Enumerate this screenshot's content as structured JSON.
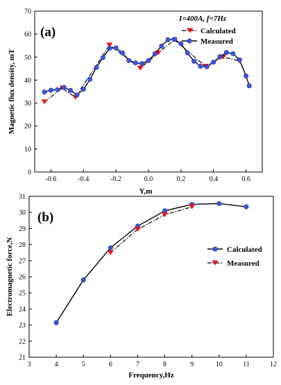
{
  "chart_data": [
    {
      "type": "line",
      "panel_label": "(a)",
      "condition_label": "I=400A, f=7Hz",
      "xlabel": "Y,m",
      "ylabel": "Magnetic flux density, mT",
      "xlim": [
        -0.7,
        0.7
      ],
      "ylim": [
        0,
        70
      ],
      "xticks": [
        -0.6,
        -0.4,
        -0.2,
        0.0,
        0.2,
        0.4,
        0.6
      ],
      "xtick_labels": [
        "-0.6",
        "-0.4",
        "-0.2",
        "0.0",
        "0.2",
        "0.4",
        "0.6"
      ],
      "yticks": [
        0,
        10,
        20,
        30,
        40,
        50,
        60,
        70
      ],
      "ytick_labels": [
        "0",
        "10",
        "20",
        "30",
        "40",
        "50",
        "60",
        "70"
      ],
      "legend_position": "top-right",
      "series": [
        {
          "name": "Calculated",
          "style": "dash-dot",
          "marker": "triangle-down",
          "line_color": "#000000",
          "marker_color": "#e8121b",
          "x": [
            -0.64,
            -0.53,
            -0.45,
            -0.24,
            -0.05,
            0.06,
            0.16,
            0.35,
            0.46,
            0.56
          ],
          "y": [
            30.5,
            36.5,
            32.5,
            55.2,
            45.2,
            51.8,
            57.5,
            46.0,
            50.0,
            48.3
          ]
        },
        {
          "name": "Measured",
          "style": "solid",
          "marker": "circle",
          "line_color": "#000000",
          "marker_color": "#3f56e0",
          "x": [
            -0.64,
            -0.6,
            -0.56,
            -0.52,
            -0.48,
            -0.44,
            -0.4,
            -0.36,
            -0.32,
            -0.28,
            -0.24,
            -0.2,
            -0.16,
            -0.12,
            -0.08,
            -0.04,
            0.0,
            0.04,
            0.08,
            0.12,
            0.16,
            0.2,
            0.24,
            0.28,
            0.32,
            0.36,
            0.4,
            0.44,
            0.48,
            0.52,
            0.56,
            0.6,
            0.62
          ],
          "y": [
            34.8,
            35.6,
            35.8,
            36.8,
            35.5,
            33.5,
            36.0,
            40.3,
            45.5,
            49.8,
            53.8,
            54.0,
            51.8,
            48.5,
            47.5,
            47.2,
            48.5,
            51.5,
            54.8,
            57.5,
            57.7,
            55.8,
            51.8,
            48.2,
            46.0,
            45.8,
            47.8,
            50.2,
            52.0,
            51.5,
            48.8,
            41.8,
            37.5
          ]
        }
      ]
    },
    {
      "type": "line",
      "panel_label": "(b)",
      "xlabel": "Frequency,Hz",
      "ylabel": "Electromagnetic force,N",
      "xlim": [
        3,
        12
      ],
      "ylim": [
        21,
        31
      ],
      "xticks": [
        3,
        4,
        5,
        6,
        7,
        8,
        9,
        10,
        11,
        12
      ],
      "xtick_labels": [
        "3",
        "4",
        "5",
        "6",
        "7",
        "8",
        "9",
        "10",
        "11",
        "12"
      ],
      "yticks": [
        21,
        22,
        23,
        24,
        25,
        26,
        27,
        28,
        29,
        30,
        31
      ],
      "ytick_labels": [
        "21",
        "22",
        "23",
        "24",
        "25",
        "26",
        "27",
        "28",
        "29",
        "30",
        "31"
      ],
      "legend_position": "right",
      "series": [
        {
          "name": "Calculated",
          "style": "solid",
          "marker": "circle",
          "line_color": "#000000",
          "marker_color": "#3f56e0",
          "x": [
            4,
            5,
            6,
            7,
            8,
            9,
            10,
            11
          ],
          "y": [
            23.15,
            25.8,
            27.8,
            29.15,
            30.1,
            30.5,
            30.55,
            30.35
          ]
        },
        {
          "name": "Measured",
          "style": "dash-dot",
          "marker": "triangle-down",
          "line_color": "#000000",
          "marker_color": "#e8121b",
          "x": [
            6,
            7,
            8,
            9
          ],
          "y": [
            27.5,
            28.95,
            29.85,
            30.35
          ]
        }
      ]
    }
  ]
}
